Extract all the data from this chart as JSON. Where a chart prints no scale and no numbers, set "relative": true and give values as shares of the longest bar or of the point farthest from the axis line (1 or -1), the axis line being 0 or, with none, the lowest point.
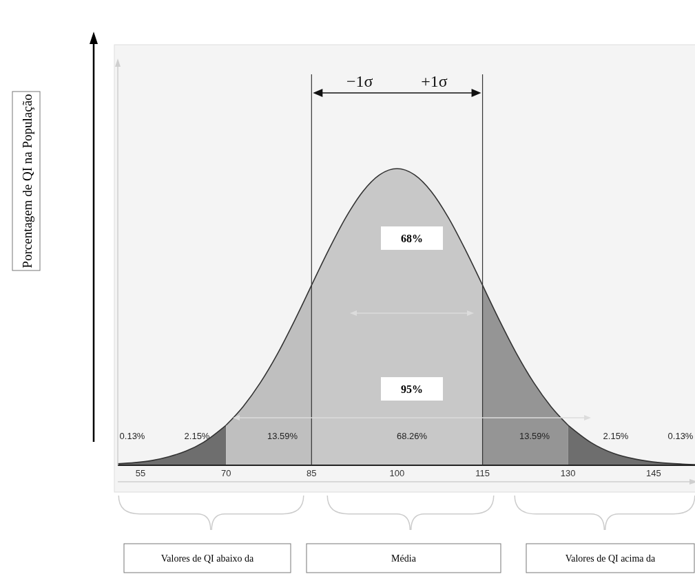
{
  "chart_data": {
    "type": "area",
    "relative": true,
    "xlim": [
      51,
      153
    ],
    "xticks": [
      55,
      70,
      85,
      100,
      115,
      130,
      145
    ],
    "series": [
      {
        "color": "#6e6e6e",
        "x": [
          51,
          54,
          57,
          60,
          63,
          66,
          70
        ],
        "values": [
          0.005,
          0.009,
          0.016,
          0.029,
          0.048,
          0.077,
          0.135
        ]
      },
      {
        "color": "#bfbfbf",
        "x": [
          70,
          73,
          76,
          79,
          82,
          85
        ],
        "values": [
          0.135,
          0.198,
          0.278,
          0.375,
          0.487,
          0.607
        ]
      },
      {
        "color": "#c8c8c8",
        "x": [
          85,
          88,
          91,
          94,
          97,
          100,
          103,
          106,
          109,
          112,
          115
        ],
        "values": [
          0.607,
          0.726,
          0.835,
          0.923,
          0.98,
          1,
          0.98,
          0.923,
          0.835,
          0.726,
          0.607
        ]
      },
      {
        "color": "#959595",
        "x": [
          115,
          118,
          121,
          124,
          127,
          130
        ],
        "values": [
          0.607,
          0.487,
          0.375,
          0.278,
          0.198,
          0.135
        ]
      },
      {
        "color": "#6e6e6e",
        "x": [
          130,
          134,
          138,
          142,
          146,
          150,
          153
        ],
        "values": [
          0.135,
          0.077,
          0.04,
          0.02,
          0.009,
          0.004,
          0.002
        ]
      }
    ],
    "ref_lines": [
      {
        "axis": "x",
        "value": 85,
        "label": "−1σ",
        "color": "#333333"
      },
      {
        "axis": "x",
        "value": 115,
        "label": "+1σ",
        "color": "#333333"
      }
    ],
    "annotations": [
      "Porcentagem de QI na População",
      "68%",
      "95%",
      "0.13%",
      "2.15%",
      "13.59%",
      "68.26%",
      "13.59%",
      "2.15%",
      "0.13%",
      "Valores de QI abaixo da",
      "Média",
      "Valores de QI acima da"
    ]
  }
}
